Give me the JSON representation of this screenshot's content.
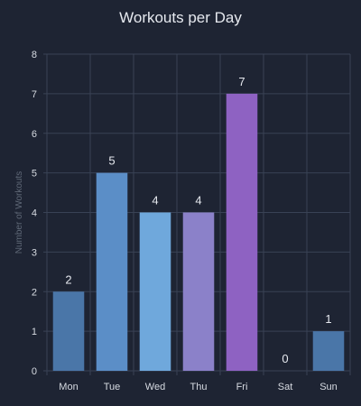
{
  "chart_data": {
    "type": "bar",
    "title": "Workouts per Day",
    "xlabel": "",
    "ylabel": "Number of Workouts",
    "categories": [
      "Mon",
      "Tue",
      "Wed",
      "Thu",
      "Fri",
      "Sat",
      "Sun"
    ],
    "values": [
      2,
      5,
      4,
      4,
      7,
      0,
      1
    ],
    "bar_colors": [
      "#4a76a8",
      "#5b8ec7",
      "#6fa8dc",
      "#8b81c9",
      "#8e62c2",
      "#4a76a8",
      "#4a76a8"
    ],
    "ylim": [
      0,
      8
    ],
    "yticks": [
      0,
      1,
      2,
      3,
      4,
      5,
      6,
      7,
      8
    ],
    "grid": true,
    "data_labels": true,
    "legend": "none"
  },
  "colors": {
    "background": "#1e2433",
    "grid": "#394255",
    "text": "#e6e9ef"
  }
}
